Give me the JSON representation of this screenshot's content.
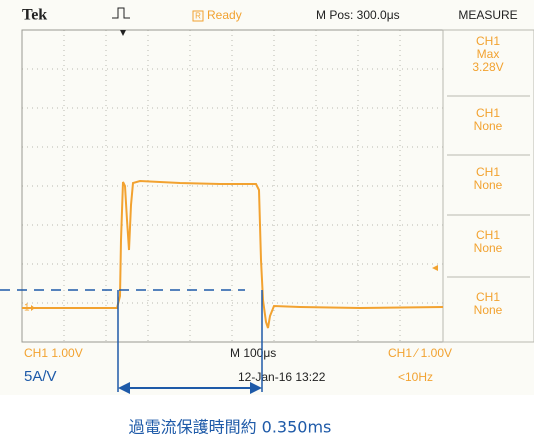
{
  "header": {
    "brand": "Tek",
    "status_icon": "R",
    "status": "Ready",
    "position": "M Pos: 300.0μs"
  },
  "measure": {
    "title": "MEASURE",
    "panels": [
      {
        "lines": [
          "CH1",
          "Max",
          "3.28V"
        ]
      },
      {
        "lines": [
          "CH1",
          "None"
        ]
      },
      {
        "lines": [
          "CH1",
          "None"
        ]
      },
      {
        "lines": [
          "CH1",
          "None"
        ]
      },
      {
        "lines": [
          "CH1",
          "None"
        ]
      }
    ]
  },
  "channel_marker": "1",
  "footer": {
    "ch_scale": "CH1  1.00V",
    "time_scale": "M 100μs",
    "trigger": "CH1 ⁄ 1.00V",
    "date": "12-Jan-16 13:22",
    "freq": "<10Hz"
  },
  "annotation": {
    "scale": "5A/V",
    "caption": "過電流保護時間約 0.350ms"
  }
}
